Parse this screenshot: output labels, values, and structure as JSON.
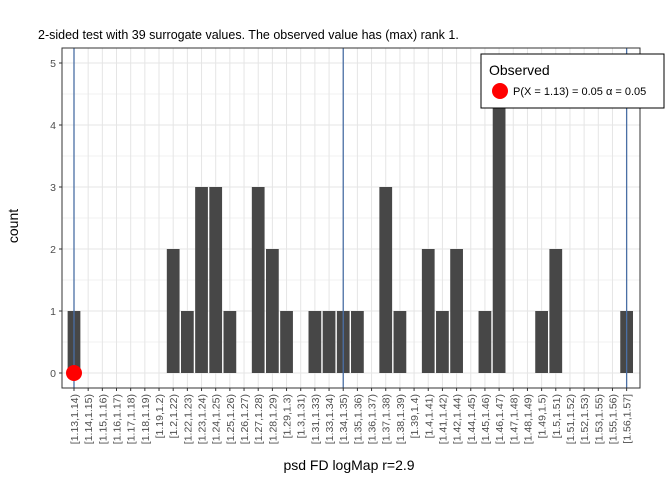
{
  "chart_data": {
    "type": "bar",
    "title": "2-sided test with 39 surrogate values. The observed value has (max) rank 1.",
    "xlabel": "psd FD logMap r=2.9",
    "ylabel": "count",
    "ylim": [
      0,
      5
    ],
    "yticks": [
      0,
      1,
      2,
      3,
      4,
      5
    ],
    "categories": [
      "[1.13,1.14)",
      "[1.14,1.15)",
      "[1.15,1.16)",
      "[1.16,1.17)",
      "[1.17,1.18)",
      "[1.18,1.19)",
      "[1.19,1.2)",
      "[1.2,1.22)",
      "[1.22,1.23)",
      "[1.23,1.24)",
      "[1.24,1.25)",
      "[1.25,1.26)",
      "[1.26,1.27)",
      "[1.27,1.28)",
      "[1.28,1.29)",
      "[1.29,1.3)",
      "[1.3,1.31)",
      "[1.31,1.33)",
      "[1.33,1.34)",
      "[1.34,1.35)",
      "[1.35,1.36)",
      "[1.36,1.37)",
      "[1.37,1.38)",
      "[1.38,1.39)",
      "[1.39,1.4)",
      "[1.4,1.41)",
      "[1.41,1.42)",
      "[1.42,1.44)",
      "[1.44,1.45)",
      "[1.45,1.46)",
      "[1.46,1.47)",
      "[1.47,1.48)",
      "[1.48,1.49)",
      "[1.49,1.5)",
      "[1.5,1.51)",
      "[1.51,1.52)",
      "[1.52,1.53)",
      "[1.53,1.55)",
      "[1.55,1.56)",
      "[1.56,1.57]"
    ],
    "values": [
      1,
      0,
      0,
      0,
      0,
      0,
      0,
      2,
      1,
      3,
      3,
      1,
      0,
      3,
      2,
      1,
      0,
      1,
      1,
      1,
      1,
      0,
      3,
      1,
      0,
      2,
      1,
      2,
      0,
      1,
      5,
      0,
      0,
      1,
      2,
      0,
      0,
      0,
      0,
      1
    ],
    "vlines_at_categories": [
      "[1.13,1.14)",
      "[1.34,1.35)",
      "[1.56,1.57]"
    ],
    "observed_point": {
      "category": "[1.13,1.14)",
      "y": 0,
      "color": "#ff0000"
    },
    "legend": {
      "title": "Observed",
      "label": "P(X = 1.13) = 0.05  α = 0.05",
      "position": "top-right"
    },
    "colors": {
      "bar": "#474747",
      "vline": "#4a6fa5",
      "grid": "#e5e5e5"
    },
    "grid": true
  }
}
